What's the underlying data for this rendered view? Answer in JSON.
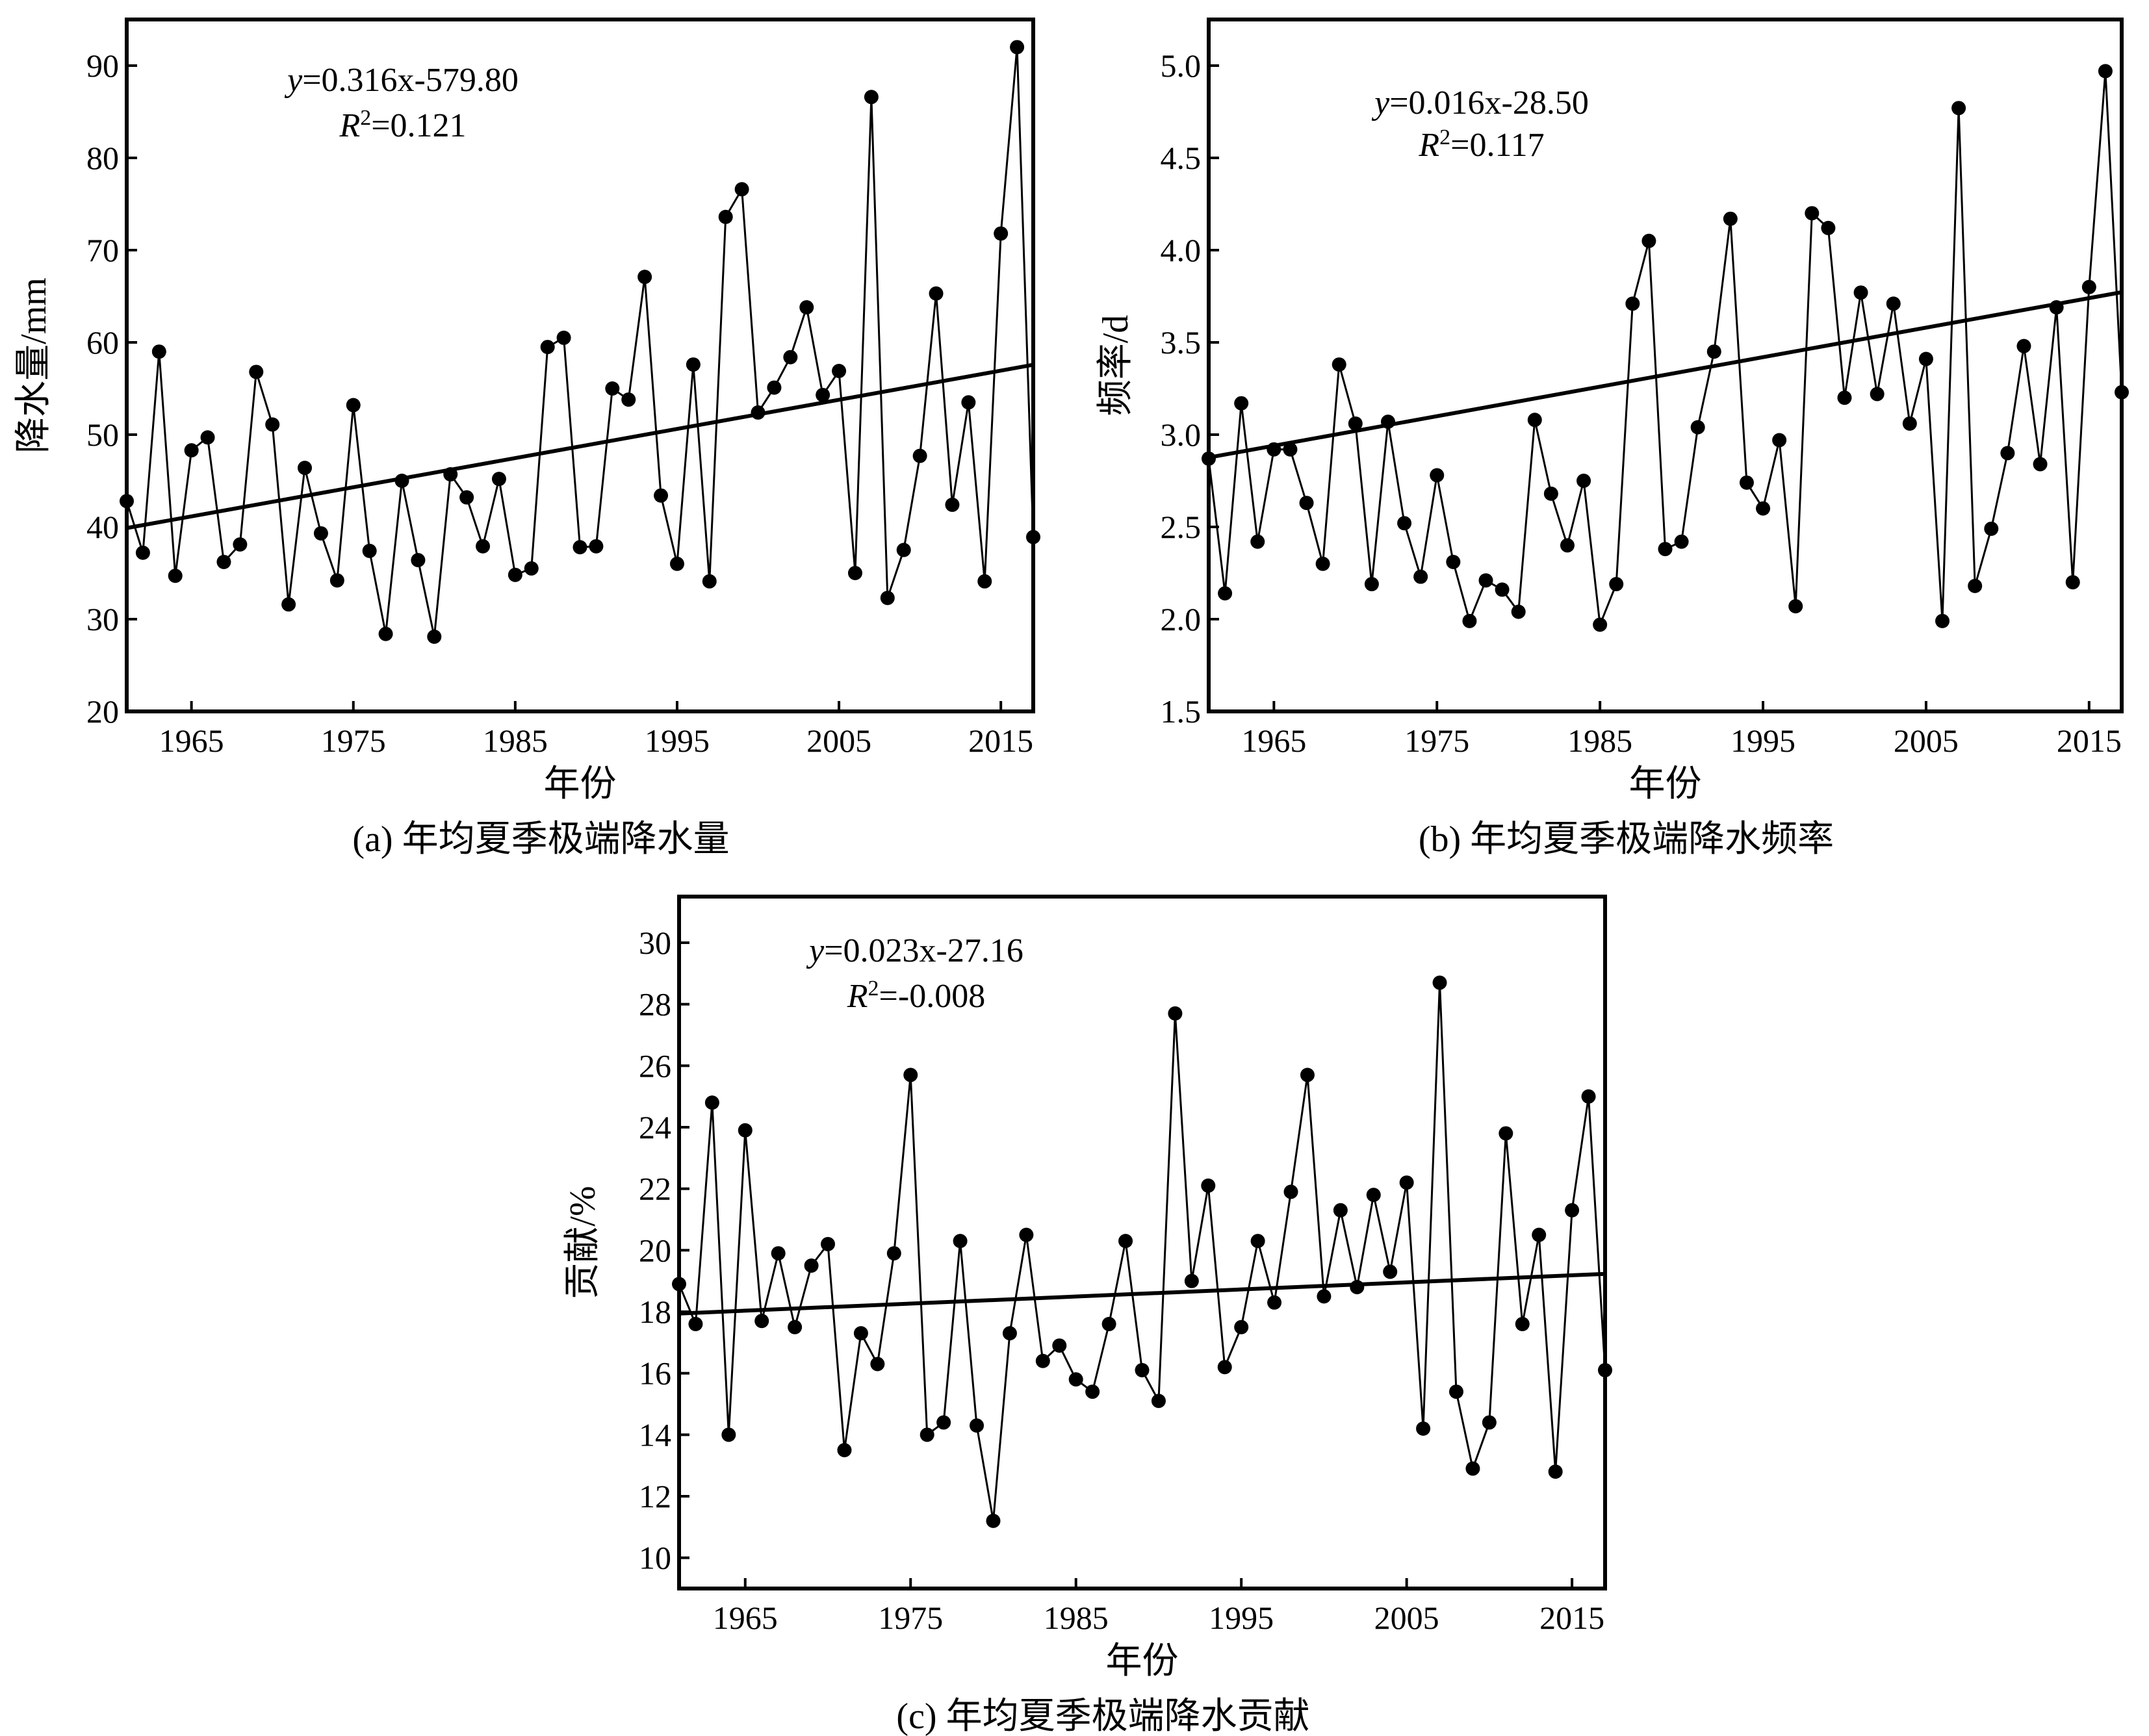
{
  "chart_data": [
    {
      "id": "a",
      "type": "line",
      "caption": "(a) 年均夏季极端降水量",
      "xlabel": "年份",
      "ylabel": "降水量/mm",
      "equation_y": "y",
      "equation_rest": "=0.316x-579.80",
      "r2_label": "R",
      "r2_sup": "2",
      "r2_value": "=0.121",
      "xlim": [
        1961,
        2017
      ],
      "ylim": [
        20,
        95
      ],
      "xticks": [
        1965,
        1975,
        1985,
        1995,
        2005,
        2015
      ],
      "yticks": [
        20,
        30,
        40,
        50,
        60,
        70,
        80,
        90
      ],
      "ytick_decimals": 0,
      "trend": {
        "slope": 0.316,
        "intercept": -579.8
      },
      "series": [
        {
          "x": [
            1961,
            1962,
            1963,
            1964,
            1965,
            1966,
            1967,
            1968,
            1969,
            1970,
            1971,
            1972,
            1973,
            1974,
            1975,
            1976,
            1977,
            1978,
            1979,
            1980,
            1981,
            1982,
            1983,
            1984,
            1985,
            1986,
            1987,
            1988,
            1989,
            1990,
            1991,
            1992,
            1993,
            1994,
            1995,
            1996,
            1997,
            1998,
            1999,
            2000,
            2001,
            2002,
            2003,
            2004,
            2005,
            2006,
            2007,
            2008,
            2009,
            2010,
            2011,
            2012,
            2013,
            2014,
            2015,
            2016,
            2017
          ],
          "values": [
            42.8,
            37.2,
            59.0,
            34.7,
            48.3,
            49.7,
            36.2,
            38.1,
            56.8,
            51.1,
            31.6,
            46.4,
            39.3,
            34.2,
            53.2,
            37.4,
            28.4,
            45.0,
            36.4,
            28.1,
            45.7,
            43.2,
            37.9,
            45.2,
            34.8,
            35.5,
            59.5,
            60.5,
            37.8,
            37.9,
            55.0,
            53.8,
            67.1,
            43.4,
            36.0,
            57.6,
            34.1,
            73.6,
            76.6,
            52.4,
            55.1,
            58.4,
            63.8,
            54.3,
            56.9,
            35.0,
            86.6,
            32.3,
            37.5,
            47.7,
            65.3,
            42.4,
            53.5,
            34.1,
            71.8,
            92.0,
            38.9
          ]
        }
      ]
    },
    {
      "id": "b",
      "type": "line",
      "caption": "(b) 年均夏季极端降水频率",
      "xlabel": "年份",
      "ylabel": "频率/d",
      "equation_y": "y",
      "equation_rest": "=0.016x-28.50",
      "r2_label": "R",
      "r2_sup": "2",
      "r2_value": "=0.117",
      "xlim": [
        1961,
        2017
      ],
      "ylim": [
        1.5,
        5.25
      ],
      "xticks": [
        1965,
        1975,
        1985,
        1995,
        2005,
        2015
      ],
      "yticks": [
        1.5,
        2.0,
        2.5,
        3.0,
        3.5,
        4.0,
        4.5,
        5.0
      ],
      "ytick_decimals": 1,
      "trend": {
        "slope": 0.016,
        "intercept": -28.5
      },
      "series": [
        {
          "x": [
            1961,
            1962,
            1963,
            1964,
            1965,
            1966,
            1967,
            1968,
            1969,
            1970,
            1971,
            1972,
            1973,
            1974,
            1975,
            1976,
            1977,
            1978,
            1979,
            1980,
            1981,
            1982,
            1983,
            1984,
            1985,
            1986,
            1987,
            1988,
            1989,
            1990,
            1991,
            1992,
            1993,
            1994,
            1995,
            1996,
            1997,
            1998,
            1999,
            2000,
            2001,
            2002,
            2003,
            2004,
            2005,
            2006,
            2007,
            2008,
            2009,
            2010,
            2011,
            2012,
            2013,
            2014,
            2015,
            2016,
            2017
          ],
          "values": [
            2.87,
            2.14,
            3.17,
            2.42,
            2.92,
            2.92,
            2.63,
            2.3,
            3.38,
            3.06,
            2.19,
            3.07,
            2.52,
            2.23,
            2.78,
            2.31,
            1.99,
            2.21,
            2.16,
            2.04,
            3.08,
            2.68,
            2.4,
            2.75,
            1.97,
            2.19,
            3.71,
            4.05,
            2.38,
            2.42,
            3.04,
            3.45,
            4.17,
            2.74,
            2.6,
            2.97,
            2.07,
            4.2,
            4.12,
            3.2,
            3.77,
            3.22,
            3.71,
            3.06,
            3.41,
            1.99,
            4.77,
            2.18,
            2.49,
            2.9,
            3.48,
            2.84,
            3.69,
            2.2,
            3.8,
            4.97,
            3.23
          ]
        }
      ]
    },
    {
      "id": "c",
      "type": "line",
      "caption": "(c) 年均夏季极端降水贡献",
      "xlabel": "年份",
      "ylabel": "贡献/%",
      "equation_y": "y",
      "equation_rest": "=0.023x-27.16",
      "r2_label": "R",
      "r2_sup": "2",
      "r2_value": "=-0.008",
      "xlim": [
        1961,
        2017
      ],
      "ylim": [
        9,
        31.5
      ],
      "xticks": [
        1965,
        1975,
        1985,
        1995,
        2005,
        2015
      ],
      "yticks": [
        10,
        12,
        14,
        16,
        18,
        20,
        22,
        24,
        26,
        28,
        30
      ],
      "ytick_decimals": 0,
      "trend": {
        "slope": 0.023,
        "intercept": -27.16
      },
      "series": [
        {
          "x": [
            1961,
            1962,
            1963,
            1964,
            1965,
            1966,
            1967,
            1968,
            1969,
            1970,
            1971,
            1972,
            1973,
            1974,
            1975,
            1976,
            1977,
            1978,
            1979,
            1980,
            1981,
            1982,
            1983,
            1984,
            1985,
            1986,
            1987,
            1988,
            1989,
            1990,
            1991,
            1992,
            1993,
            1994,
            1995,
            1996,
            1997,
            1998,
            1999,
            2000,
            2001,
            2002,
            2003,
            2004,
            2005,
            2006,
            2007,
            2008,
            2009,
            2010,
            2011,
            2012,
            2013,
            2014,
            2015,
            2016,
            2017
          ],
          "values": [
            18.9,
            17.6,
            24.8,
            14.0,
            23.9,
            17.7,
            19.9,
            17.5,
            19.5,
            20.2,
            13.5,
            17.3,
            16.3,
            19.9,
            25.7,
            14.0,
            14.4,
            20.3,
            14.3,
            11.2,
            17.3,
            20.5,
            16.4,
            16.9,
            15.8,
            15.4,
            17.6,
            20.3,
            16.1,
            15.1,
            27.7,
            19.0,
            22.1,
            16.2,
            17.5,
            20.3,
            18.3,
            21.9,
            25.7,
            18.5,
            21.3,
            18.8,
            21.8,
            19.3,
            22.2,
            14.2,
            28.7,
            15.4,
            12.9,
            14.4,
            23.8,
            17.6,
            20.5,
            12.8,
            21.3,
            25.0,
            16.1
          ]
        }
      ]
    }
  ]
}
